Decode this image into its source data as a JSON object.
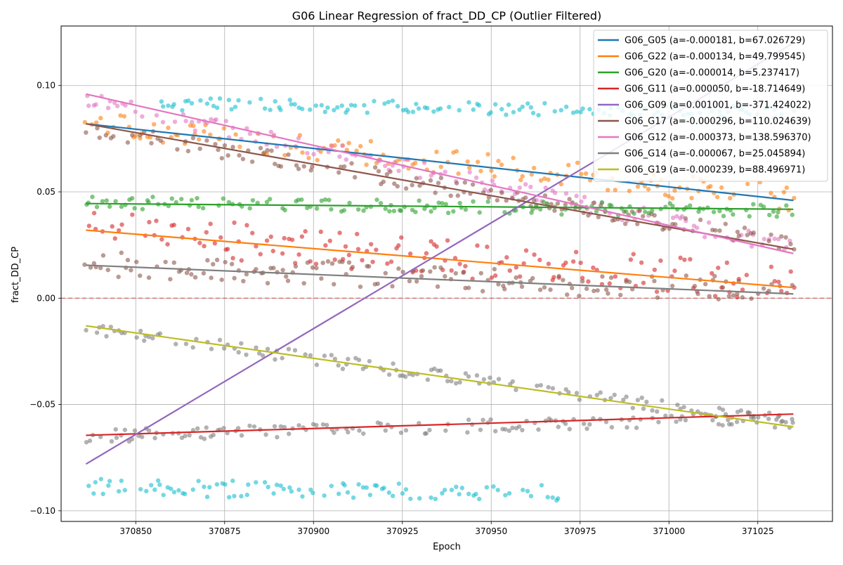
{
  "chart_data": {
    "type": "scatter",
    "title": "G06 Linear Regression of fract_DD_CP (Outlier Filtered)",
    "xlabel": "Epoch",
    "ylabel": "fract_DD_CP",
    "xlim": [
      370829,
      371046
    ],
    "ylim": [
      -0.105,
      0.128
    ],
    "x_range": [
      370836,
      371035
    ],
    "x_ticks": [
      370850,
      370875,
      370900,
      370925,
      370950,
      370975,
      371000,
      371025
    ],
    "x_tick_labels": [
      "370850",
      "370875",
      "370900",
      "370925",
      "370950",
      "370975",
      "371000",
      "371025"
    ],
    "y_ticks": [
      -0.1,
      -0.05,
      0.0,
      0.05,
      0.1
    ],
    "y_tick_labels": [
      "−0.10",
      "−0.05",
      "0.00",
      "0.05",
      "0.10"
    ],
    "grid": true,
    "legend_position": "top-right",
    "zero_line": {
      "y": 0.0,
      "color": "#d62728",
      "style": "dashed"
    },
    "series": [
      {
        "name": "G06_G05 (a=-0.000181, b=67.026729)",
        "color": "#1f77b4",
        "a": -0.000181,
        "b": 67.026729,
        "points": {
          "start": 0.082,
          "end": 0.046,
          "noise": 0.0,
          "n": 0
        }
      },
      {
        "name": "G06_G22 (a=-0.000134, b=49.799545)",
        "color": "#ff7f0e",
        "a": -0.000134,
        "b": 49.799545,
        "fit": [
          0.032,
          0.005
        ]
      },
      {
        "name": "G06_G20 (a=-0.000014, b=5.237417)",
        "color": "#2ca02c",
        "a": -1.4e-05,
        "b": 5.237417,
        "fit": [
          0.0445,
          0.0418
        ]
      },
      {
        "name": "G06_G11 (a=0.000050, b=-18.714649)",
        "color": "#d62728",
        "a": 5e-05,
        "b": -18.714649,
        "fit": [
          -0.0645,
          -0.0545
        ]
      },
      {
        "name": "G06_G09 (a=0.001001, b=-371.424022)",
        "color": "#9467bd",
        "a": 0.001001,
        "b": -371.424022,
        "fit": [
          -0.078,
          0.12
        ]
      },
      {
        "name": "G06_G17 (a=-0.000296, b=110.024639)",
        "color": "#8c564b",
        "a": -0.000296,
        "b": 110.024639,
        "fit": [
          0.082,
          0.023
        ]
      },
      {
        "name": "G06_G12 (a=-0.000373, b=138.596370)",
        "color": "#e377c2",
        "a": -0.000373,
        "b": 138.59637,
        "fit": [
          0.096,
          0.021
        ]
      },
      {
        "name": "G06_G14 (a=-0.000067, b=25.045894)",
        "color": "#7f7f7f",
        "a": -6.7e-05,
        "b": 25.045894,
        "fit": [
          0.0155,
          0.002
        ]
      },
      {
        "name": "G06_G19 (a=-0.000239, b=88.496971)",
        "color": "#bcbd22",
        "a": -0.000239,
        "b": 88.496971,
        "fit": [
          -0.013,
          -0.0605
        ]
      }
    ],
    "scatter_groups": [
      {
        "color": "#ff7f0e",
        "start": 0.082,
        "end": 0.047,
        "spread": 0.006
      },
      {
        "color": "#e377c2",
        "start": 0.093,
        "end": 0.024,
        "spread": 0.004
      },
      {
        "color": "#8c564b",
        "start": 0.08,
        "end": 0.026,
        "spread": 0.004
      },
      {
        "color": "#2ca02c",
        "start": 0.045,
        "end": 0.041,
        "spread": 0.003
      },
      {
        "color": "#d62728",
        "start": 0.032,
        "end": 0.006,
        "spread": 0.009
      },
      {
        "color": "#8c564b",
        "start": 0.016,
        "end": 0.003,
        "spread": 0.006
      },
      {
        "color": "#7f7f7f",
        "start": -0.014,
        "end": -0.059,
        "spread": 0.003
      },
      {
        "color": "#7f7f7f",
        "start": -0.065,
        "end": -0.056,
        "spread": 0.003
      },
      {
        "color": "#17becf",
        "start": 0.092,
        "end": 0.087,
        "spread": 0.003,
        "xmin": 370857,
        "xmax": 371035
      },
      {
        "color": "#17becf",
        "start": -0.089,
        "end": -0.093,
        "spread": 0.004,
        "xmin": 370836,
        "xmax": 370970
      }
    ]
  }
}
